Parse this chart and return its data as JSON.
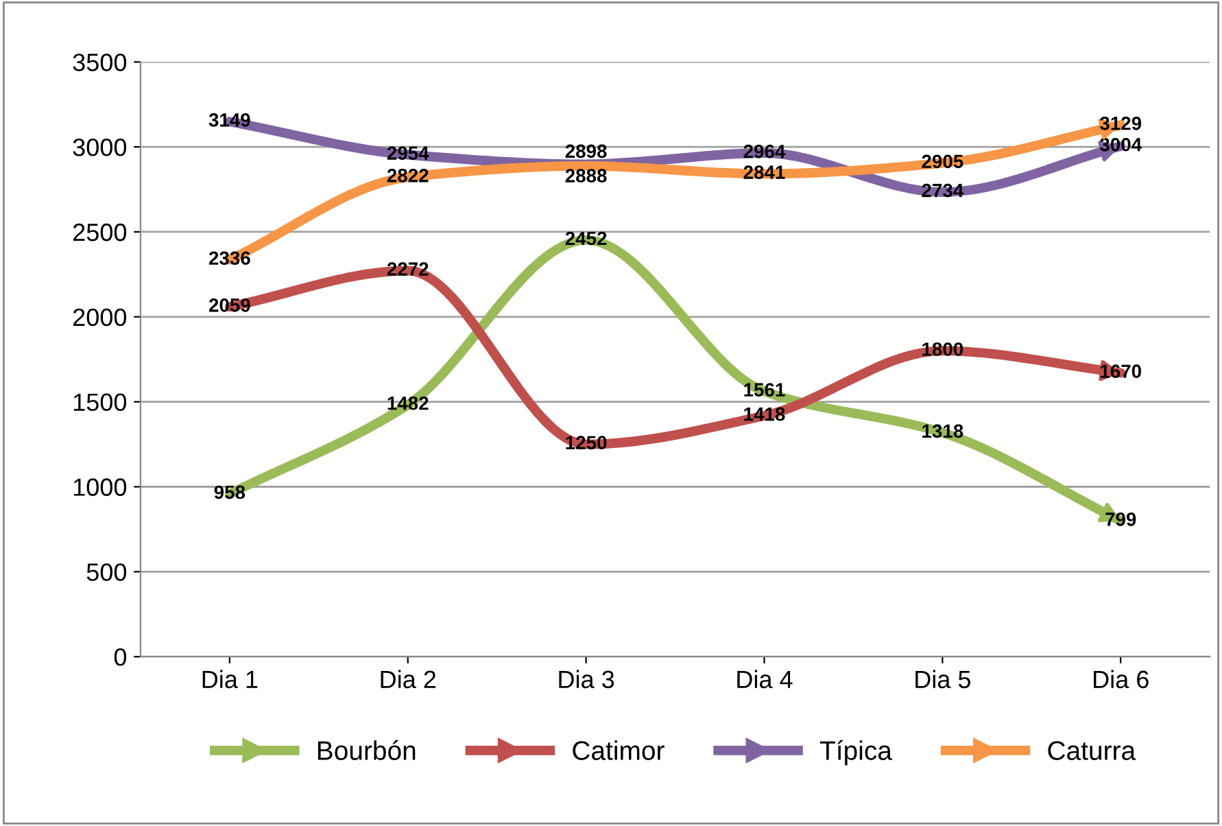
{
  "chart_data": {
    "type": "line",
    "categories": [
      "Dia 1",
      "Dia 2",
      "Dia 3",
      "Dia 4",
      "Dia 5",
      "Dia 6"
    ],
    "series": [
      {
        "name": "Bourbón",
        "color": "#9bbb59",
        "values": [
          958,
          1482,
          2452,
          1561,
          1318,
          799
        ]
      },
      {
        "name": "Catimor",
        "color": "#c0504d",
        "values": [
          2059,
          2272,
          1250,
          1418,
          1800,
          1670
        ]
      },
      {
        "name": "Típica",
        "color": "#8064a2",
        "values": [
          3149,
          2954,
          2898,
          2964,
          2734,
          3004
        ]
      },
      {
        "name": "Caturra",
        "color": "#f79646",
        "values": [
          2336,
          2822,
          2888,
          2841,
          2905,
          3129
        ]
      }
    ],
    "ylim": [
      0,
      3500
    ],
    "yticks": [
      0,
      500,
      1000,
      1500,
      2000,
      2500,
      3000,
      3500
    ],
    "grid": "y",
    "legend": "bottom",
    "data_labels": true,
    "marker": "none",
    "line_style": "solid"
  }
}
